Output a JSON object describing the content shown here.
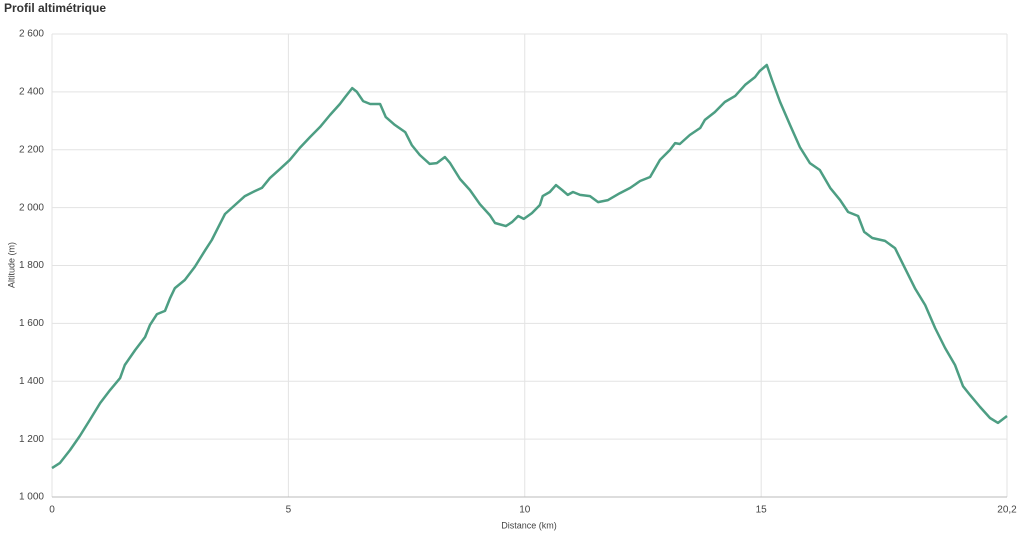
{
  "chart_data": {
    "type": "line",
    "title": "Profil altimétrique",
    "x_label": "Distance (km)",
    "y_label": "Altitude (m)",
    "color": "#4d9e83",
    "grid": true,
    "xlim": [
      0,
      20.2
    ],
    "ylim": [
      1000,
      2600
    ],
    "xticks": [
      0,
      5,
      10,
      15,
      {
        "value": 20.2,
        "label": "20,2"
      }
    ],
    "yticks": [
      {
        "value": 1000,
        "label": "1 000"
      },
      {
        "value": 1200,
        "label": "1 200"
      },
      {
        "value": 1400,
        "label": "1 400"
      },
      {
        "value": 1600,
        "label": "1 600"
      },
      {
        "value": 1800,
        "label": "1 800"
      },
      {
        "value": 2000,
        "label": "2 000"
      },
      {
        "value": 2200,
        "label": "2 200"
      },
      {
        "value": 2400,
        "label": "2 400"
      },
      {
        "value": 2600,
        "label": "2 600"
      }
    ],
    "x": [
      0,
      0.17,
      0.38,
      0.59,
      0.8,
      1.02,
      1.23,
      1.44,
      1.54,
      1.76,
      1.97,
      2.07,
      2.22,
      2.39,
      2.5,
      2.6,
      2.81,
      3.02,
      3.24,
      3.38,
      3.51,
      3.66,
      3.87,
      4.08,
      4.29,
      4.44,
      4.61,
      4.82,
      5.03,
      5.24,
      5.46,
      5.67,
      5.88,
      6.09,
      6.2,
      6.35,
      6.45,
      6.58,
      6.73,
      6.94,
      7.06,
      7.25,
      7.47,
      7.61,
      7.78,
      7.99,
      8.14,
      8.31,
      8.42,
      8.63,
      8.84,
      9.05,
      9.26,
      9.37,
      9.6,
      9.73,
      9.86,
      9.98,
      10.15,
      10.32,
      10.38,
      10.53,
      10.66,
      10.79,
      10.91,
      11.02,
      11.17,
      11.38,
      11.55,
      11.76,
      12.01,
      12.23,
      12.44,
      12.65,
      12.86,
      13.07,
      13.18,
      13.28,
      13.49,
      13.71,
      13.81,
      14.02,
      14.23,
      14.45,
      14.66,
      14.87,
      14.97,
      15.12,
      15.23,
      15.4,
      15.61,
      15.82,
      16.03,
      16.24,
      16.46,
      16.67,
      16.84,
      17.05,
      17.18,
      17.35,
      17.62,
      17.83,
      18.04,
      18.26,
      18.47,
      18.68,
      18.89,
      19.1,
      19.27,
      19.42,
      19.63,
      19.84,
      20.01,
      20.2
    ],
    "values": [
      1100,
      1118,
      1162,
      1211,
      1266,
      1325,
      1370,
      1411,
      1456,
      1508,
      1553,
      1594,
      1632,
      1643,
      1688,
      1722,
      1750,
      1795,
      1853,
      1888,
      1930,
      1978,
      2009,
      2040,
      2057,
      2068,
      2102,
      2133,
      2165,
      2206,
      2244,
      2279,
      2320,
      2358,
      2382,
      2413,
      2400,
      2368,
      2358,
      2358,
      2313,
      2286,
      2261,
      2216,
      2182,
      2151,
      2154,
      2175,
      2154,
      2099,
      2061,
      2012,
      1974,
      1947,
      1936,
      1950,
      1971,
      1961,
      1981,
      2009,
      2040,
      2054,
      2078,
      2061,
      2044,
      2054,
      2044,
      2040,
      2019,
      2026,
      2050,
      2068,
      2092,
      2106,
      2165,
      2199,
      2223,
      2220,
      2251,
      2275,
      2303,
      2330,
      2365,
      2386,
      2424,
      2451,
      2472,
      2493,
      2441,
      2365,
      2286,
      2209,
      2154,
      2130,
      2068,
      2026,
      1985,
      1971,
      1916,
      1895,
      1885,
      1860,
      1791,
      1719,
      1663,
      1584,
      1515,
      1456,
      1383,
      1352,
      1311,
      1273,
      1256,
      1280
    ]
  }
}
